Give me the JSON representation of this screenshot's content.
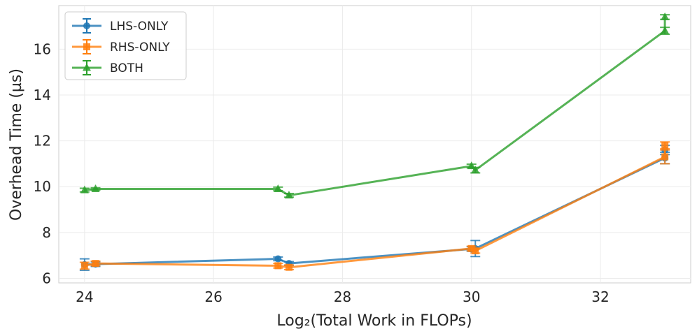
{
  "chart_data": {
    "type": "line",
    "xlabel": "Log₂(Total Work in FLOPs)",
    "ylabel": "Overhead Time (µs)",
    "xlim": [
      23.6,
      33.4
    ],
    "ylim": [
      5.8,
      17.9
    ],
    "xticks": [
      24,
      26,
      28,
      30,
      32
    ],
    "yticks": [
      6,
      8,
      10,
      12,
      14,
      16
    ],
    "grid": true,
    "legend_position": "top-left",
    "series": [
      {
        "name": "LHS-ONLY",
        "color": "#1f77b4",
        "marker": "circle",
        "points": [
          {
            "x": 24.0,
            "y": 6.6,
            "err": 0.25
          },
          {
            "x": 24.17,
            "y": 6.62,
            "err": 0.1
          },
          {
            "x": 27.0,
            "y": 6.85,
            "err": 0.08
          },
          {
            "x": 27.17,
            "y": 6.65,
            "err": 0.08
          },
          {
            "x": 30.0,
            "y": 7.28,
            "err": 0.1
          },
          {
            "x": 30.06,
            "y": 7.3,
            "err": 0.35
          },
          {
            "x": 33.0,
            "y": 11.25,
            "err": 0.25
          },
          {
            "x": 33.0,
            "y": 11.6,
            "err": 0.2
          }
        ]
      },
      {
        "name": "RHS-ONLY",
        "color": "#ff7f0e",
        "marker": "square",
        "points": [
          {
            "x": 24.0,
            "y": 6.55,
            "err": 0.15
          },
          {
            "x": 24.17,
            "y": 6.65,
            "err": 0.1
          },
          {
            "x": 27.0,
            "y": 6.55,
            "err": 0.1
          },
          {
            "x": 27.17,
            "y": 6.48,
            "err": 0.1
          },
          {
            "x": 30.0,
            "y": 7.3,
            "err": 0.1
          },
          {
            "x": 30.06,
            "y": 7.2,
            "err": 0.1
          },
          {
            "x": 33.0,
            "y": 11.3,
            "err": 0.3
          },
          {
            "x": 33.0,
            "y": 11.8,
            "err": 0.15
          }
        ]
      },
      {
        "name": "BOTH",
        "color": "#2ca02c",
        "marker": "triangle",
        "points": [
          {
            "x": 24.0,
            "y": 9.85,
            "err": 0.08
          },
          {
            "x": 24.17,
            "y": 9.9,
            "err": 0.05
          },
          {
            "x": 27.0,
            "y": 9.9,
            "err": 0.08
          },
          {
            "x": 27.17,
            "y": 9.62,
            "err": 0.08
          },
          {
            "x": 30.0,
            "y": 10.9,
            "err": 0.08
          },
          {
            "x": 30.06,
            "y": 10.72,
            "err": 0.12
          },
          {
            "x": 33.0,
            "y": 16.8,
            "err": 0.15
          },
          {
            "x": 33.0,
            "y": 17.4,
            "err": 0.1
          }
        ]
      }
    ]
  }
}
